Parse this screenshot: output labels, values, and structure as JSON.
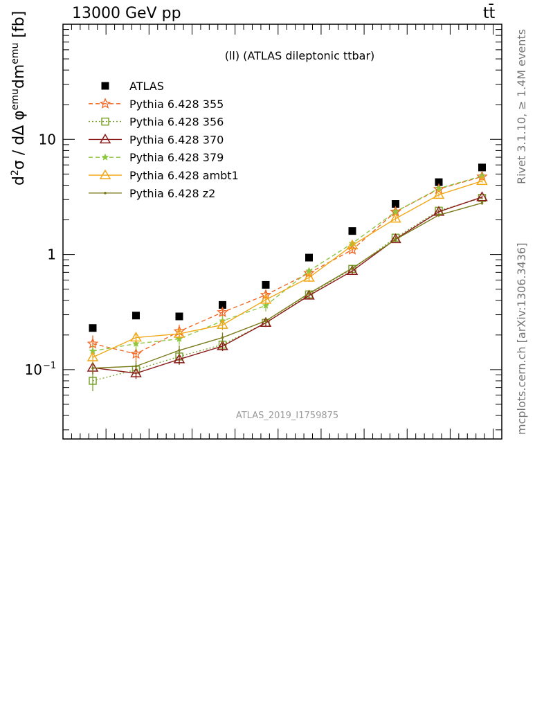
{
  "header": {
    "left": "13000 GeV pp",
    "right": "tt̄"
  },
  "side_labels": {
    "top": "Rivet 3.1.10, ≥ 1.4M events",
    "bottom": "mcplots.cern.ch [arXiv:1306.3436]"
  },
  "y_axis_label": {
    "p1": "d",
    "s1": "2",
    "p2": "σ / dΔ φ",
    "s2": "emu",
    "p3": "dm",
    "s3": "emu",
    "p4": " [fb]"
  },
  "chart_data": {
    "type": "line",
    "title": "(ll) (ATLAS dileptonic ttbar)",
    "watermark": "ATLAS_2019_I1759875",
    "xlabel": "",
    "ylabel": "d²σ / dΔφ^emu dm^emu [fb]",
    "yscale": "log",
    "ylim": [
      0.025,
      100
    ],
    "yticks": [
      {
        "v": 0.1,
        "t": "10",
        "sup": "−1"
      },
      {
        "v": 1,
        "t": "1",
        "sup": ""
      },
      {
        "v": 10,
        "t": "10",
        "sup": ""
      }
    ],
    "x": [
      1,
      2,
      3,
      4,
      5,
      6,
      7,
      8,
      9,
      10
    ],
    "legend_position": "top-left",
    "series": [
      {
        "name": "ATLAS",
        "color": "#000000",
        "marker": "square",
        "dash": "none",
        "values": [
          0.23,
          0.295,
          0.29,
          0.365,
          0.545,
          0.94,
          1.6,
          2.75,
          4.25,
          5.7
        ],
        "errors": [
          0.008,
          0.01,
          0.01,
          0.012,
          0.015,
          0.025,
          0.04,
          0.07,
          0.1,
          0.14
        ]
      },
      {
        "name": "Pythia 6.428 355",
        "color": "#f26522",
        "marker": "star-open",
        "dash": "dashed",
        "values": [
          0.168,
          0.137,
          0.215,
          0.315,
          0.445,
          0.69,
          1.1,
          2.35,
          3.7,
          4.75
        ],
        "errors": [
          0.03,
          0.02,
          0.03,
          0.03,
          0.04,
          0.05,
          0.07,
          0.1,
          0.14,
          0.16
        ]
      },
      {
        "name": "Pythia 6.428 356",
        "color": "#7aa22d",
        "marker": "square-open",
        "dash": "dotted",
        "values": [
          0.08,
          0.1,
          0.13,
          0.165,
          0.255,
          0.45,
          0.75,
          1.4,
          2.4,
          3.1
        ],
        "errors": [
          0.015,
          0.015,
          0.02,
          0.02,
          0.02,
          0.03,
          0.04,
          0.06,
          0.08,
          0.1
        ]
      },
      {
        "name": "Pythia 6.428 370",
        "color": "#8b1a1a",
        "marker": "triangle-open",
        "dash": "none",
        "values": [
          0.104,
          0.093,
          0.123,
          0.16,
          0.255,
          0.44,
          0.72,
          1.36,
          2.35,
          3.15
        ],
        "errors": [
          0.012,
          0.01,
          0.012,
          0.015,
          0.02,
          0.03,
          0.04,
          0.06,
          0.08,
          0.1
        ]
      },
      {
        "name": "Pythia 6.428 379",
        "color": "#8dc63f",
        "marker": "star",
        "dash": "dashed",
        "values": [
          0.145,
          0.168,
          0.185,
          0.265,
          0.36,
          0.72,
          1.25,
          2.35,
          3.75,
          4.8
        ],
        "errors": [
          0.02,
          0.02,
          0.02,
          0.03,
          0.04,
          0.05,
          0.07,
          0.1,
          0.14,
          0.16
        ]
      },
      {
        "name": "Pythia 6.428 ambt1",
        "color": "#f0a818",
        "marker": "triangle-open",
        "dash": "none",
        "values": [
          0.128,
          0.19,
          0.205,
          0.245,
          0.405,
          0.63,
          1.2,
          2.05,
          3.3,
          4.35
        ],
        "errors": [
          0.015,
          0.02,
          0.02,
          0.025,
          0.035,
          0.05,
          0.07,
          0.1,
          0.13,
          0.15
        ]
      },
      {
        "name": "Pythia 6.428 z2",
        "color": "#7a7a1a",
        "marker": "dot",
        "dash": "none",
        "values": [
          0.103,
          0.107,
          0.147,
          0.19,
          0.265,
          0.46,
          0.76,
          1.35,
          2.2,
          2.8
        ],
        "errors": [
          0.012,
          0.012,
          0.015,
          0.02,
          0.02,
          0.03,
          0.04,
          0.06,
          0.08,
          0.1
        ]
      }
    ]
  }
}
